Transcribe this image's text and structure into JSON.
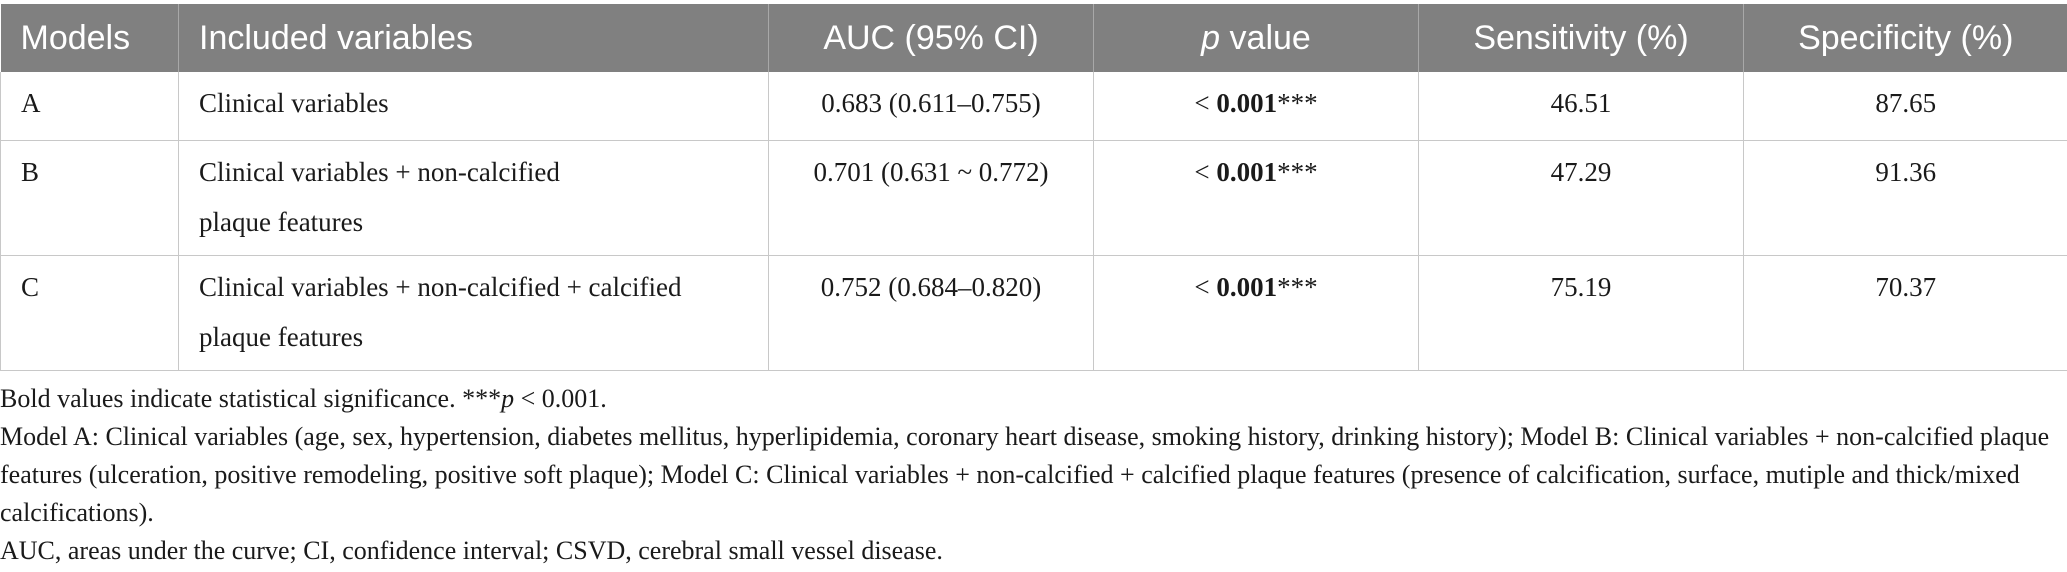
{
  "table": {
    "headers": [
      "Models",
      "Included variables",
      "AUC (95% CI)",
      "value",
      "Sensitivity (%)",
      "Specificity (%)"
    ],
    "p_header_italic": "p",
    "rows": [
      {
        "model": "A",
        "variables_line1": "Clinical variables",
        "variables_line2": "",
        "auc": "0.683 (0.611–0.755)",
        "p_prefix": "< ",
        "p_bold": "0.001",
        "p_stars": "***",
        "sensitivity": "46.51",
        "specificity": "87.65"
      },
      {
        "model": "B",
        "variables_line1": "Clinical variables + non-calcified",
        "variables_line2": "plaque features",
        "auc": "0.701 (0.631 ~ 0.772)",
        "p_prefix": "< ",
        "p_bold": "0.001",
        "p_stars": "***",
        "sensitivity": "47.29",
        "specificity": "91.36"
      },
      {
        "model": "C",
        "variables_line1": "Clinical variables + non-calcified + calcified",
        "variables_line2": "plaque features",
        "auc": "0.752 (0.684–0.820)",
        "p_prefix": "< ",
        "p_bold": "0.001",
        "p_stars": "***",
        "sensitivity": "75.19",
        "specificity": "70.37"
      }
    ]
  },
  "notes": {
    "bold_note_prefix": "Bold values indicate statistical significance. ***",
    "bold_note_p": "p",
    "bold_note_suffix": " < 0.001.",
    "model_definitions": "Model A: Clinical variables (age, sex, hypertension, diabetes mellitus, hyperlipidemia, coronary heart disease, smoking history, drinking history); Model B: Clinical variables + non-calcified plaque features (ulceration, positive remodeling, positive soft plaque); Model C: Clinical variables + non-calcified + calcified plaque features (presence of calcification, surface, mutiple and thick/mixed calcifications).",
    "abbreviations": "AUC, areas under the curve; CI, confidence interval; CSVD, cerebral small vessel disease."
  }
}
